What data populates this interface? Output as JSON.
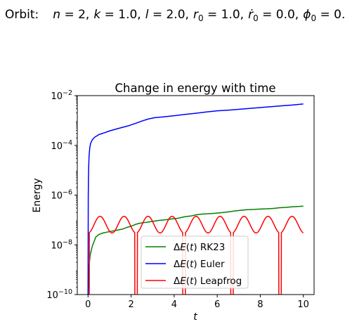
{
  "figure": {
    "suptitle_prefix": "Orbit:",
    "params": [
      {
        "name": "n",
        "value": "2"
      },
      {
        "name": "k",
        "value": "1.0"
      },
      {
        "name": "l",
        "value": "2.0"
      },
      {
        "name": "r",
        "sub": "0",
        "value": "1.0"
      },
      {
        "name": "r",
        "sub": "0",
        "dot": true,
        "value": "0.0"
      },
      {
        "name": "ϕ",
        "sub": "0",
        "value": "0.0"
      }
    ]
  },
  "chart_data": {
    "type": "line",
    "title": "Change in energy with time",
    "xlabel": "t",
    "ylabel": "Energy",
    "yscale": "log",
    "xlim": [
      -0.5,
      10.5
    ],
    "ylim": [
      1e-10,
      0.01
    ],
    "x_ticks": [
      0,
      2,
      4,
      6,
      8,
      10
    ],
    "y_ticks": [
      {
        "value": 1e-10,
        "base": "10",
        "exp": "−10"
      },
      {
        "value": 1e-08,
        "base": "10",
        "exp": "−8"
      },
      {
        "value": 1e-06,
        "base": "10",
        "exp": "−6"
      },
      {
        "value": 0.0001,
        "base": "10",
        "exp": "−4"
      },
      {
        "value": 0.01,
        "base": "10",
        "exp": "−2"
      }
    ],
    "legend_position": "lower center",
    "series": [
      {
        "name": "ΔE(t) RK23",
        "label_sym": "ΔE(t)",
        "label_rest": "RK23",
        "color": "#008000",
        "points": [
          [
            0.0,
            1e-10
          ],
          [
            0.05,
            1.5e-09
          ],
          [
            0.1,
            4e-09
          ],
          [
            0.15,
            6e-09
          ],
          [
            0.2,
            9e-09
          ],
          [
            0.3,
            1.5e-08
          ],
          [
            0.35,
            2e-08
          ],
          [
            0.4,
            2.2e-08
          ],
          [
            0.5,
            2.6e-08
          ],
          [
            0.7,
            3e-08
          ],
          [
            1.0,
            3.4e-08
          ],
          [
            1.3,
            3.8e-08
          ],
          [
            1.6,
            4.3e-08
          ],
          [
            1.8,
            5e-08
          ],
          [
            2.0,
            5.6e-08
          ],
          [
            2.2,
            6.6e-08
          ],
          [
            2.4,
            7.4e-08
          ],
          [
            2.6,
            7.8e-08
          ],
          [
            2.8,
            8.2e-08
          ],
          [
            3.0,
            8.8e-08
          ],
          [
            3.3,
            9.6e-08
          ],
          [
            3.6,
            1.02e-07
          ],
          [
            3.9,
            1.1e-07
          ],
          [
            4.2,
            1.18e-07
          ],
          [
            4.5,
            1.35e-07
          ],
          [
            4.8,
            1.45e-07
          ],
          [
            5.0,
            1.6e-07
          ],
          [
            5.3,
            1.72e-07
          ],
          [
            5.6,
            1.78e-07
          ],
          [
            5.9,
            1.86e-07
          ],
          [
            6.2,
            1.96e-07
          ],
          [
            6.5,
            2.1e-07
          ],
          [
            6.8,
            2.3e-07
          ],
          [
            7.1,
            2.45e-07
          ],
          [
            7.4,
            2.6e-07
          ],
          [
            7.7,
            2.65e-07
          ],
          [
            8.0,
            2.75e-07
          ],
          [
            8.3,
            2.8e-07
          ],
          [
            8.6,
            2.9e-07
          ],
          [
            8.9,
            3.1e-07
          ],
          [
            9.2,
            3.2e-07
          ],
          [
            9.5,
            3.4e-07
          ],
          [
            9.8,
            3.5e-07
          ],
          [
            10.0,
            3.6e-07
          ]
        ]
      },
      {
        "name": "ΔE(t) Euler",
        "label_sym": "ΔE(t)",
        "label_rest": "Euler",
        "color": "#0000ff",
        "points": [
          [
            0.0,
            1e-10
          ],
          [
            0.01,
            1e-06
          ],
          [
            0.02,
            5e-06
          ],
          [
            0.03,
            1.5e-05
          ],
          [
            0.05,
            4e-05
          ],
          [
            0.08,
            8e-05
          ],
          [
            0.12,
            0.00012
          ],
          [
            0.2,
            0.00017
          ],
          [
            0.3,
            0.00021
          ],
          [
            0.5,
            0.00027
          ],
          [
            0.8,
            0.00033
          ],
          [
            1.0,
            0.00038
          ],
          [
            1.3,
            0.00045
          ],
          [
            1.6,
            0.00053
          ],
          [
            1.9,
            0.00062
          ],
          [
            2.2,
            0.00076
          ],
          [
            2.5,
            0.00095
          ],
          [
            2.8,
            0.00115
          ],
          [
            3.1,
            0.0013
          ],
          [
            3.5,
            0.0014
          ],
          [
            4.0,
            0.00155
          ],
          [
            4.5,
            0.00175
          ],
          [
            5.0,
            0.00195
          ],
          [
            5.5,
            0.0022
          ],
          [
            6.0,
            0.00245
          ],
          [
            6.5,
            0.0026
          ],
          [
            7.0,
            0.0028
          ],
          [
            7.5,
            0.00305
          ],
          [
            8.0,
            0.0033
          ],
          [
            8.5,
            0.0036
          ],
          [
            9.0,
            0.0039
          ],
          [
            9.5,
            0.0042
          ],
          [
            10.0,
            0.0046
          ]
        ]
      },
      {
        "name": "ΔE(t) Leapfrog",
        "label_sym": "ΔE(t)",
        "label_rest": "Leapfrog",
        "color": "#ff0000",
        "generator": {
          "kind": "oscillation",
          "period": 2.23,
          "peak": 1.4e-07,
          "trough": 3e-08,
          "dips_to_ylim_min": [
            2.23,
            4.46,
            6.69,
            8.92
          ],
          "x_range": [
            0,
            10
          ]
        }
      }
    ]
  }
}
